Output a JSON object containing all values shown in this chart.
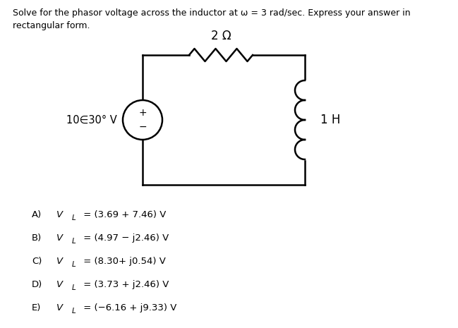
{
  "title_line1": "Solve for the phasor voltage across the inductor at ω = 3 rad/sec. Express your answer in",
  "title_line2": "rectangular form.",
  "resistor_label": "2 Ω",
  "inductor_label": "1 H",
  "source_label": "10∈30° V",
  "answers": [
    [
      "A)",
      "V",
      "L",
      " = (3.69 + 7.46) V"
    ],
    [
      "B)",
      "V",
      "L",
      " = (4.97 − j2.46) V"
    ],
    [
      "C)",
      "V",
      "L",
      " = (8.30+ j0.54) V"
    ],
    [
      "D)",
      "V",
      "L",
      " = (3.73 + j2.46) V"
    ],
    [
      "E)",
      "V",
      "L",
      " = (−6.16 + j9.33) V"
    ]
  ],
  "bg_color": "#ffffff",
  "text_color": "#000000",
  "circuit_color": "#000000",
  "lw": 1.8
}
